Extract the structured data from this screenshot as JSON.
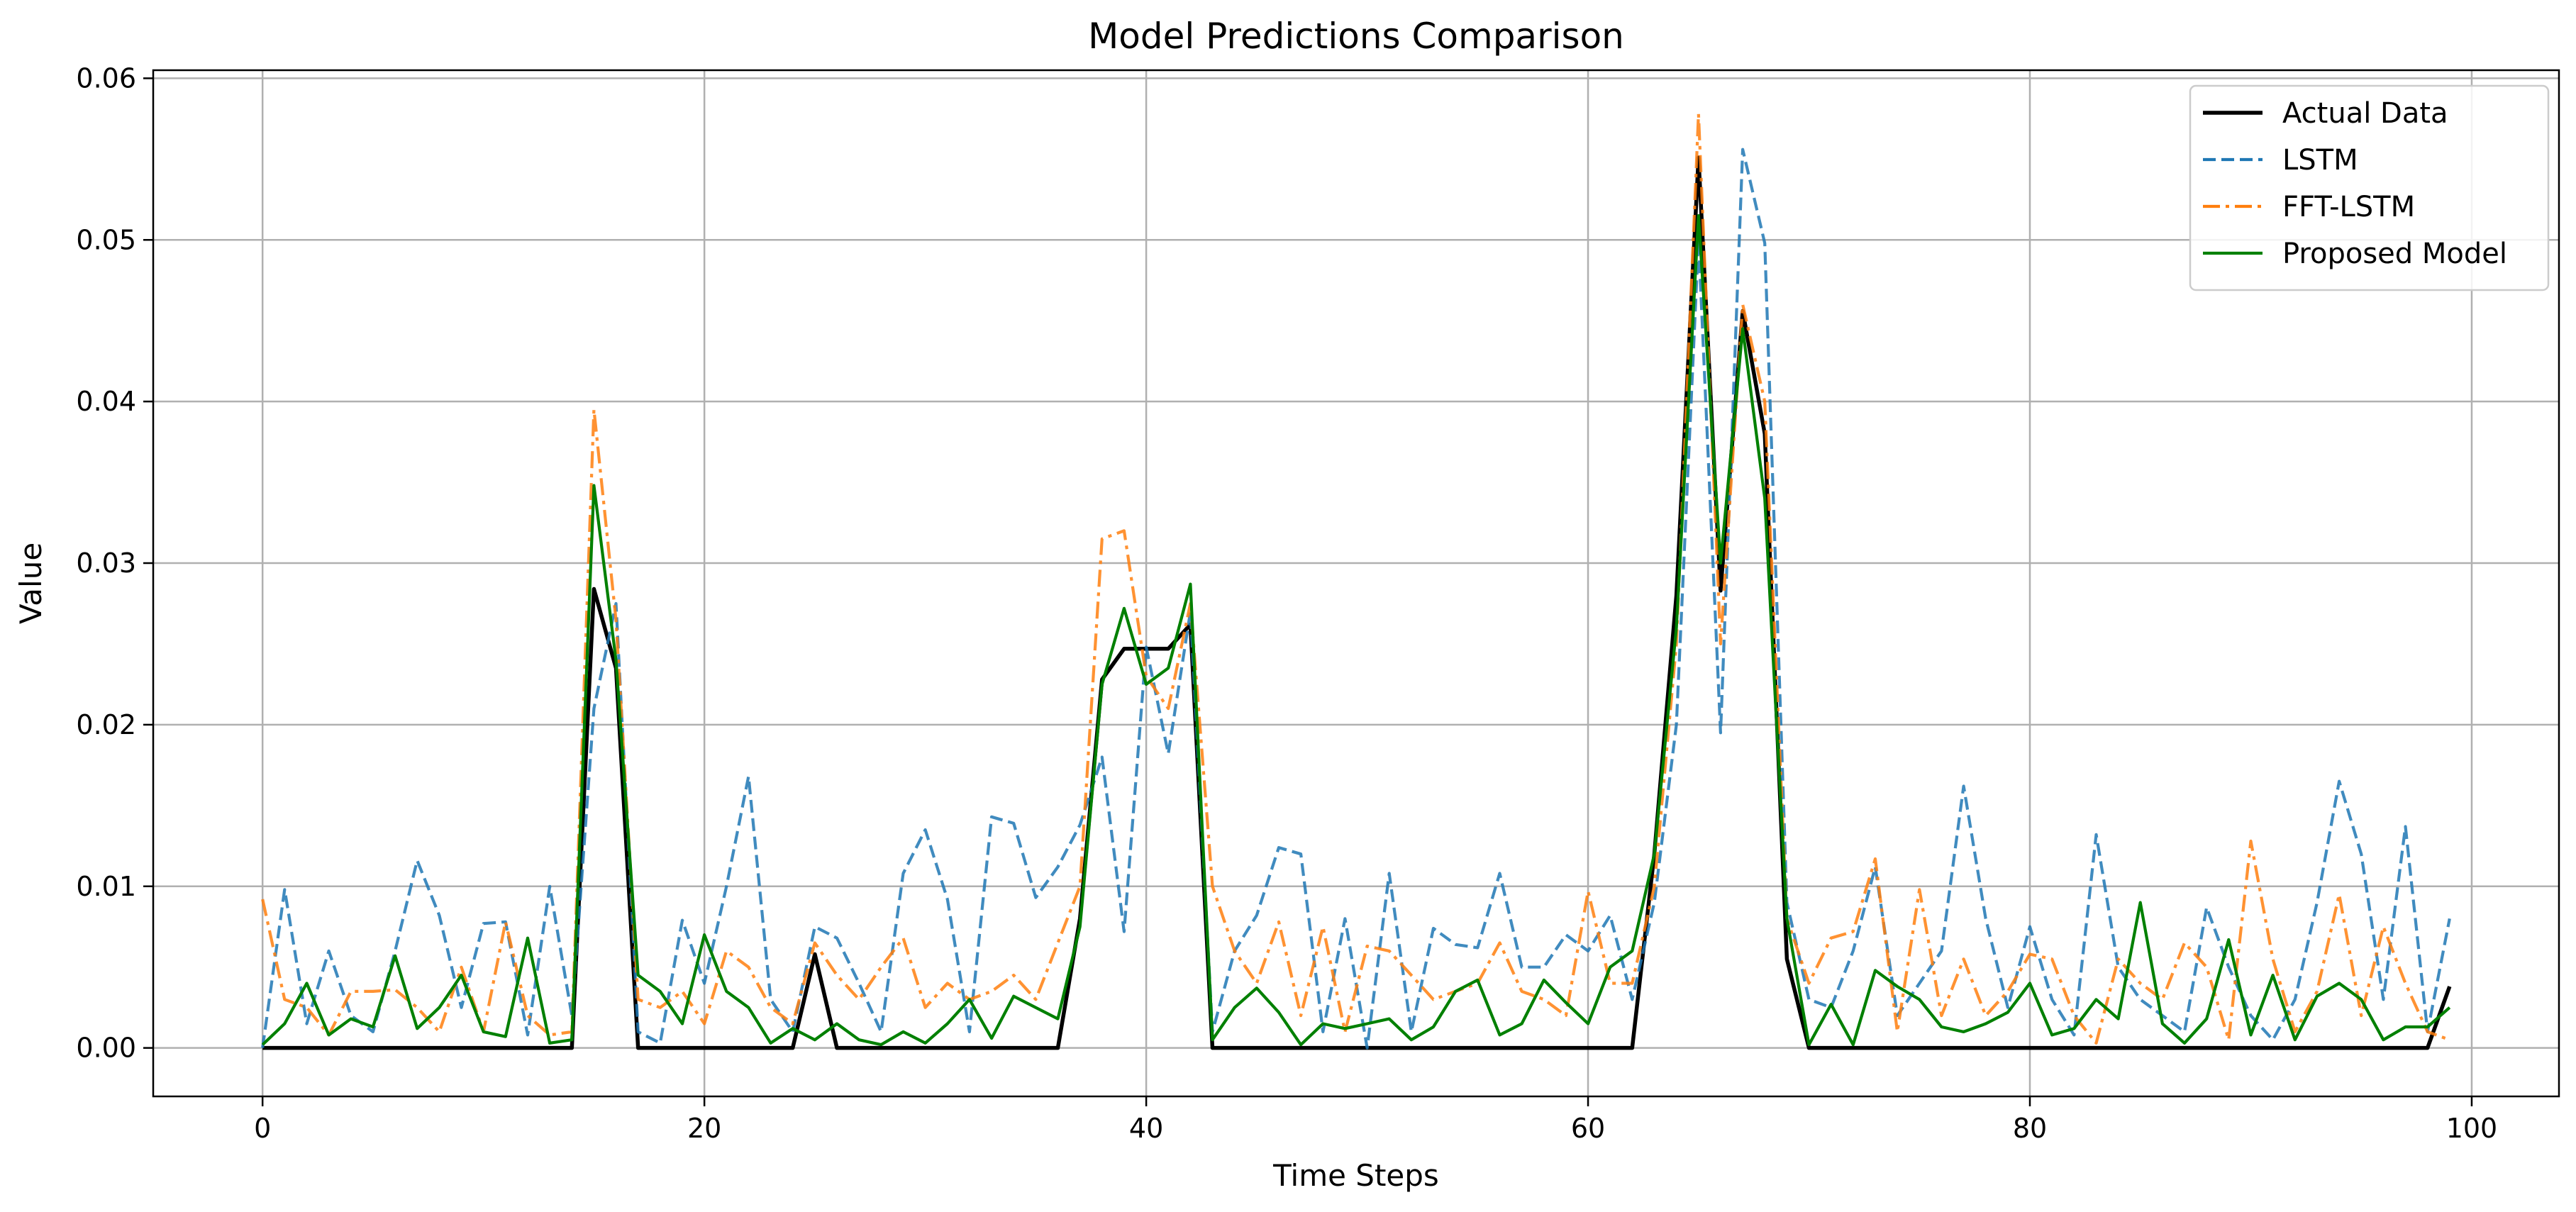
{
  "chart_data": {
    "type": "line",
    "title": "Model Predictions Comparison",
    "xlabel": "Time Steps",
    "ylabel": "Value",
    "xlim": [
      -4.95,
      103.95
    ],
    "ylim": [
      -0.003,
      0.0605
    ],
    "xticks": [
      0,
      20,
      40,
      60,
      80,
      100
    ],
    "xtick_labels": [
      "0",
      "20",
      "40",
      "60",
      "80",
      "100"
    ],
    "yticks": [
      0.0,
      0.01,
      0.02,
      0.03,
      0.04,
      0.05,
      0.06
    ],
    "ytick_labels": [
      "0.00",
      "0.01",
      "0.02",
      "0.03",
      "0.04",
      "0.05",
      "0.06"
    ],
    "grid": true,
    "legend_position": "top-right",
    "series": [
      {
        "name": "Actual Data",
        "color": "#000000",
        "style": "solid",
        "values": [
          0,
          0,
          0,
          0,
          0,
          0,
          0,
          0,
          0,
          0,
          0,
          0,
          0,
          0,
          0,
          0.0284,
          0.0235,
          0,
          0,
          0,
          0,
          0,
          0,
          0,
          0,
          0.0058,
          0,
          0,
          0,
          0,
          0,
          0,
          0,
          0,
          0,
          0,
          0,
          0.008,
          0.0228,
          0.0247,
          0.0247,
          0.0247,
          0.0262,
          0,
          0,
          0,
          0,
          0,
          0,
          0,
          0,
          0,
          0,
          0,
          0,
          0,
          0,
          0,
          0,
          0,
          0,
          0,
          0,
          0.012,
          0.028,
          0.0551,
          0.0283,
          0.0456,
          0.038,
          0.0055,
          0,
          0,
          0,
          0,
          0,
          0,
          0,
          0,
          0,
          0,
          0,
          0,
          0,
          0,
          0,
          0,
          0,
          0,
          0,
          0,
          0,
          0,
          0,
          0,
          0,
          0,
          0,
          0,
          0,
          0.0038
        ]
      },
      {
        "name": "LSTM",
        "color": "#1f77b4",
        "style": "dashed",
        "values": [
          0,
          0.0098,
          0.0015,
          0.006,
          0.002,
          0.001,
          0.006,
          0.0116,
          0.0082,
          0.0025,
          0.0077,
          0.0078,
          0.0008,
          0.01,
          0.002,
          0.021,
          0.0275,
          0.001,
          0.0003,
          0.0079,
          0.004,
          0.01,
          0.0168,
          0.003,
          0.001,
          0.0075,
          0.0068,
          0.004,
          0.001,
          0.0108,
          0.0135,
          0.0092,
          0.001,
          0.0143,
          0.0139,
          0.0093,
          0.0112,
          0.0138,
          0.018,
          0.0072,
          0.0248,
          0.0182,
          0.027,
          0.001,
          0.006,
          0.0082,
          0.0124,
          0.012,
          0.001,
          0.008,
          0.0,
          0.0108,
          0.001,
          0.0074,
          0.0064,
          0.0062,
          0.0108,
          0.005,
          0.005,
          0.007,
          0.006,
          0.0082,
          0.003,
          0.009,
          0.02,
          0.05,
          0.0195,
          0.0556,
          0.0498,
          0.009,
          0.003,
          0.0025,
          0.006,
          0.0112,
          0.002,
          0.004,
          0.006,
          0.0162,
          0.008,
          0.0025,
          0.0075,
          0.003,
          0.0008,
          0.0132,
          0.005,
          0.003,
          0.002,
          0.001,
          0.0087,
          0.005,
          0.002,
          0.0005,
          0.003,
          0.009,
          0.0165,
          0.012,
          0.003,
          0.0137,
          0.001,
          0.008
        ]
      },
      {
        "name": "FFT-LSTM",
        "color": "#ff7f0e",
        "style": "dashdot",
        "values": [
          0.0092,
          0.003,
          0.0025,
          0.0008,
          0.0035,
          0.0035,
          0.0036,
          0.0025,
          0.001,
          0.005,
          0.001,
          0.0078,
          0.002,
          0.0008,
          0.001,
          0.0395,
          0.0265,
          0.003,
          0.0025,
          0.0035,
          0.0015,
          0.006,
          0.005,
          0.0025,
          0.0015,
          0.0065,
          0.0045,
          0.003,
          0.005,
          0.0068,
          0.0025,
          0.004,
          0.003,
          0.0035,
          0.0045,
          0.003,
          0.0065,
          0.01,
          0.0315,
          0.032,
          0.023,
          0.021,
          0.0275,
          0.01,
          0.006,
          0.004,
          0.0078,
          0.002,
          0.0075,
          0.001,
          0.0063,
          0.006,
          0.0045,
          0.003,
          0.0035,
          0.004,
          0.0065,
          0.0035,
          0.003,
          0.002,
          0.0097,
          0.004,
          0.004,
          0.01,
          0.025,
          0.0578,
          0.025,
          0.046,
          0.04,
          0.008,
          0.004,
          0.0068,
          0.0072,
          0.0117,
          0.001,
          0.0098,
          0.002,
          0.0055,
          0.002,
          0.0035,
          0.0058,
          0.0055,
          0.002,
          0.0003,
          0.0055,
          0.004,
          0.003,
          0.0065,
          0.005,
          0.0005,
          0.0128,
          0.0055,
          0.001,
          0.0035,
          0.0095,
          0.002,
          0.0075,
          0.004,
          0.001,
          0.0005
        ]
      },
      {
        "name": "Proposed Model",
        "color": "#008000",
        "style": "solid",
        "values": [
          0.0002,
          0.0015,
          0.004,
          0.0008,
          0.0018,
          0.0013,
          0.0057,
          0.0012,
          0.0025,
          0.0045,
          0.001,
          0.0007,
          0.0068,
          0.0003,
          0.0005,
          0.0348,
          0.024,
          0.0045,
          0.0035,
          0.0015,
          0.007,
          0.0035,
          0.0025,
          0.0003,
          0.0012,
          0.0005,
          0.0015,
          0.0005,
          0.0002,
          0.001,
          0.0003,
          0.0015,
          0.003,
          0.0006,
          0.0032,
          0.0025,
          0.0018,
          0.0075,
          0.0225,
          0.0272,
          0.0225,
          0.0235,
          0.0287,
          0.0005,
          0.0025,
          0.0037,
          0.0022,
          0.0002,
          0.0015,
          0.0012,
          0.0015,
          0.0018,
          0.0005,
          0.0013,
          0.0035,
          0.0042,
          0.0008,
          0.0015,
          0.0042,
          0.0028,
          0.0015,
          0.005,
          0.006,
          0.012,
          0.026,
          0.0515,
          0.03,
          0.0445,
          0.034,
          0.008,
          0.0002,
          0.0027,
          0.0002,
          0.0048,
          0.0038,
          0.003,
          0.0013,
          0.001,
          0.0015,
          0.0022,
          0.004,
          0.0008,
          0.0012,
          0.003,
          0.0018,
          0.009,
          0.0015,
          0.0003,
          0.0018,
          0.0067,
          0.0008,
          0.0045,
          0.0005,
          0.0032,
          0.004,
          0.003,
          0.0005,
          0.0013,
          0.0013,
          0.0025
        ]
      }
    ]
  }
}
